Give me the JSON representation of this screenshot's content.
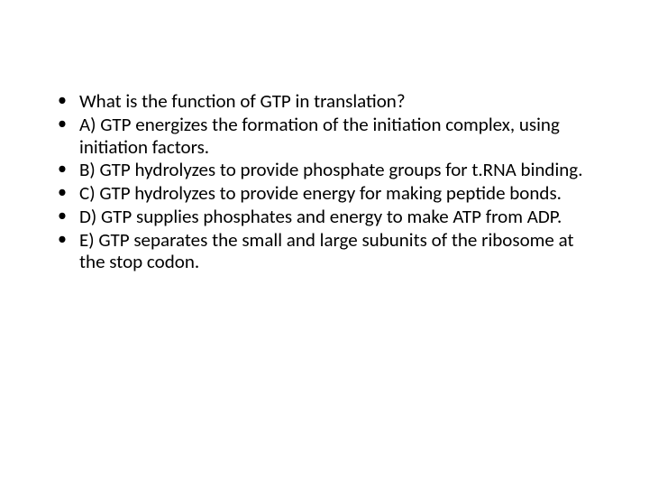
{
  "slide": {
    "background_color": "#ffffff",
    "text_color": "#000000",
    "font_family": "Calibri",
    "font_size_pt": 16,
    "bullets": [
      {
        "text": "What is the function of GTP in translation?"
      },
      {
        "text": "A)   GTP energizes the formation of the initiation complex, using initiation factors."
      },
      {
        "text": "B)   GTP hydrolyzes to provide phosphate groups for t.RNA binding."
      },
      {
        "text": "C)   GTP hydrolyzes to provide energy for making peptide bonds."
      },
      {
        "text": "D)   GTP supplies phosphates and energy to make ATP from ADP."
      },
      {
        "text": "E)   GTP separates the small and large subunits of the ribosome at the stop codon."
      }
    ]
  }
}
